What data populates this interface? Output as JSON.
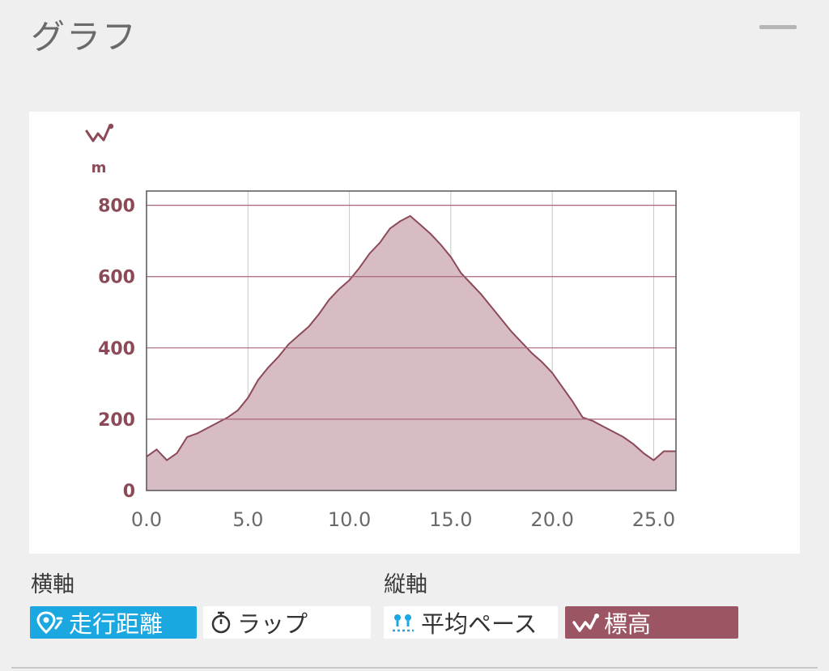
{
  "panel": {
    "title": "グラフ"
  },
  "chart_data": {
    "type": "area",
    "unit_label": "m",
    "x_ticks": [
      "0.0",
      "5.0",
      "10.0",
      "15.0",
      "20.0",
      "25.0"
    ],
    "y_ticks": [
      "0",
      "200",
      "400",
      "600",
      "800"
    ],
    "xlim": [
      0,
      26.1
    ],
    "ylim": [
      0,
      840
    ],
    "grid": true,
    "colors": {
      "fill": "#d8bcc3",
      "line": "#8c4a58",
      "grid_h": "#a8667a",
      "grid_v": "#c7c7c7",
      "tick_label_y": "#8c4a58"
    },
    "x": [
      0,
      0.5,
      1.0,
      1.5,
      2.0,
      2.5,
      3.0,
      3.5,
      4.0,
      4.5,
      5.0,
      5.5,
      6.0,
      6.5,
      7.0,
      7.5,
      8.0,
      8.5,
      9.0,
      9.5,
      10.0,
      10.5,
      11.0,
      11.5,
      12.0,
      12.5,
      13.0,
      13.5,
      14.0,
      14.5,
      15.0,
      15.5,
      16.0,
      16.5,
      17.0,
      17.5,
      18.0,
      18.5,
      19.0,
      19.5,
      20.0,
      20.5,
      21.0,
      21.5,
      22.0,
      22.5,
      23.0,
      23.5,
      24.0,
      24.5,
      25.0,
      25.5,
      26.1
    ],
    "values": [
      95,
      115,
      85,
      105,
      150,
      160,
      175,
      190,
      205,
      225,
      260,
      310,
      345,
      375,
      410,
      435,
      460,
      495,
      535,
      565,
      590,
      625,
      665,
      695,
      735,
      755,
      770,
      745,
      720,
      690,
      655,
      610,
      580,
      550,
      515,
      480,
      445,
      415,
      385,
      360,
      330,
      290,
      250,
      205,
      195,
      180,
      165,
      150,
      130,
      105,
      85,
      110,
      110
    ]
  },
  "horizontal_axis": {
    "label": "横軸",
    "options": [
      {
        "label": "走行距離",
        "icon": "map-pin-icon",
        "selected": true
      },
      {
        "label": "ラップ",
        "icon": "stopwatch-icon",
        "selected": false
      }
    ]
  },
  "vertical_axis": {
    "label": "縦軸",
    "options": [
      {
        "label": "平均ペース",
        "icon": "pace-icon",
        "selected": false
      },
      {
        "label": "標高",
        "icon": "elevation-icon",
        "selected": true
      }
    ]
  }
}
